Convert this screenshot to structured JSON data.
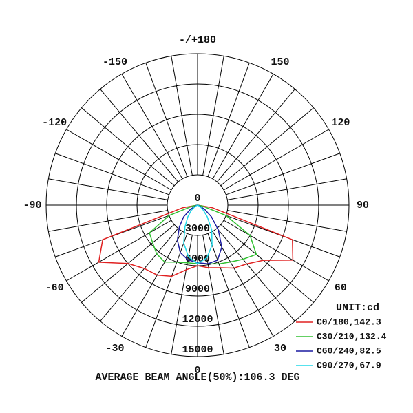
{
  "chart_data": {
    "type": "polar",
    "title": "AVERAGE BEAM ANGLE(50%):106.3 DEG",
    "unit_label": "UNIT:cd",
    "angle_ticks": [
      {
        "value": 180,
        "label": "-/+180"
      },
      150,
      120,
      90,
      60,
      30,
      0,
      -30,
      -60,
      -90,
      -120,
      -150
    ],
    "rlim": [
      0,
      15000
    ],
    "rticks": [
      0,
      3000,
      6000,
      9000,
      12000,
      15000
    ],
    "x": [
      -90,
      -80,
      -70,
      -60,
      -50,
      -40,
      -30,
      -20,
      -10,
      0,
      10,
      20,
      30,
      40,
      50,
      60,
      70,
      80,
      90
    ],
    "series": [
      {
        "name": "C0/180,142.3",
        "color": "#e02020",
        "values": [
          0,
          1500,
          10000,
          11300,
          9000,
          8200,
          8000,
          7500,
          6500,
          6000,
          6300,
          6600,
          7200,
          7600,
          8500,
          10900,
          10000,
          1500,
          0
        ]
      },
      {
        "name": "C30/210,132.4",
        "color": "#30c030",
        "values": [
          0,
          500,
          3000,
          5500,
          5800,
          6300,
          6500,
          6000,
          5800,
          5800,
          5900,
          6200,
          6500,
          7000,
          7600,
          6000,
          3000,
          500,
          0
        ]
      },
      {
        "name": "C60/240,82.5",
        "color": "#1a1aa0",
        "values": [
          0,
          0,
          200,
          800,
          1800,
          2800,
          4000,
          5000,
          5500,
          5700,
          5900,
          5800,
          4800,
          3200,
          1800,
          800,
          200,
          0,
          0
        ]
      },
      {
        "name": "C90/270,67.9",
        "color": "#20d8e8",
        "values": [
          0,
          0,
          0,
          300,
          800,
          1500,
          2500,
          4000,
          5200,
          5800,
          5300,
          4200,
          2800,
          1500,
          700,
          300,
          0,
          0,
          0
        ]
      }
    ]
  }
}
